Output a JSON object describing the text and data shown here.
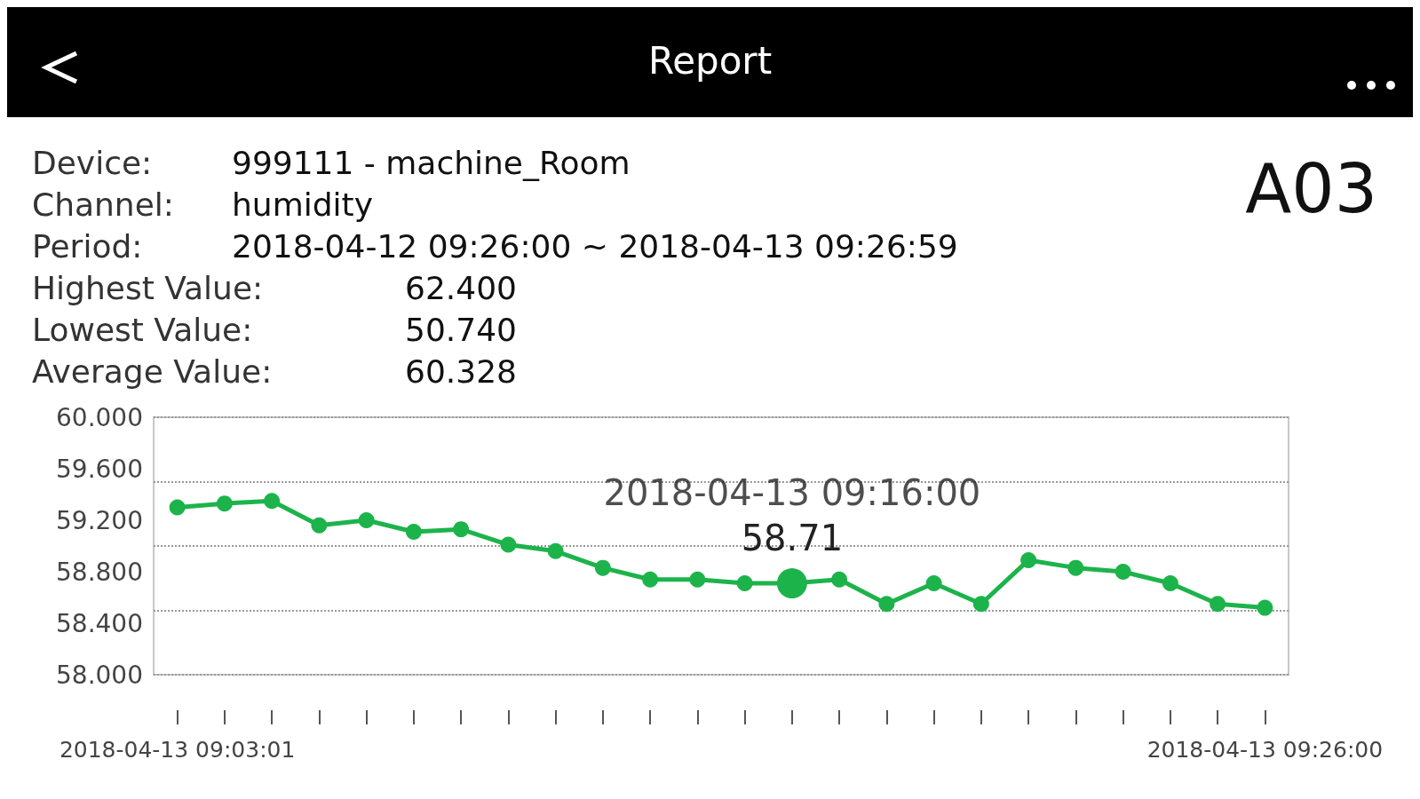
{
  "chart_data": {
    "type": "line",
    "title": "Report",
    "subtitle": "A03",
    "annotations": [
      "Device:",
      "999111 - machine_Room",
      "Channel:",
      "humidity",
      "Period:",
      "2018-04-12 09:26:00 ~ 2018-04-13 09:26:59",
      "Highest Value:",
      "62.400",
      "Lowest Value:",
      "50.740",
      "Average Value:",
      "60.328",
      {
        "text": "2018-04-13 09:16:00",
        "y": 58.71
      }
    ],
    "categories": [
      "2018-04-13 09:03:01",
      null,
      null,
      null,
      null,
      null,
      null,
      null,
      null,
      null,
      null,
      null,
      null,
      null,
      null,
      null,
      null,
      null,
      null,
      null,
      null,
      null,
      null,
      "2018-04-13 09:26:00"
    ],
    "series": [
      {
        "color": "#1db34b",
        "values": [
          59.3,
          59.33,
          59.35,
          59.16,
          59.2,
          59.11,
          59.13,
          59.01,
          58.96,
          58.83,
          58.74,
          58.74,
          58.71,
          58.71,
          58.74,
          58.55,
          58.71,
          58.55,
          58.89,
          58.83,
          58.8,
          58.71,
          58.55,
          58.52
        ],
        "value_labels": [
          null,
          null,
          null,
          null,
          null,
          null,
          null,
          null,
          null,
          null,
          null,
          null,
          null,
          "58.71",
          null,
          null,
          null,
          null,
          null,
          null,
          null,
          null,
          null,
          null
        ]
      }
    ],
    "ylim": [
      58,
      60
    ],
    "yticks": [
      {
        "value": 58,
        "label": "58.000"
      },
      {
        "value": 58.4,
        "label": "58.400"
      },
      {
        "value": 58.8,
        "label": "58.800"
      },
      {
        "value": 59.2,
        "label": "59.200"
      },
      {
        "value": 59.6,
        "label": "59.600"
      },
      {
        "value": 60,
        "label": "60.000"
      }
    ],
    "grid": "y",
    "marker": "circle",
    "line_style": "solid"
  }
}
